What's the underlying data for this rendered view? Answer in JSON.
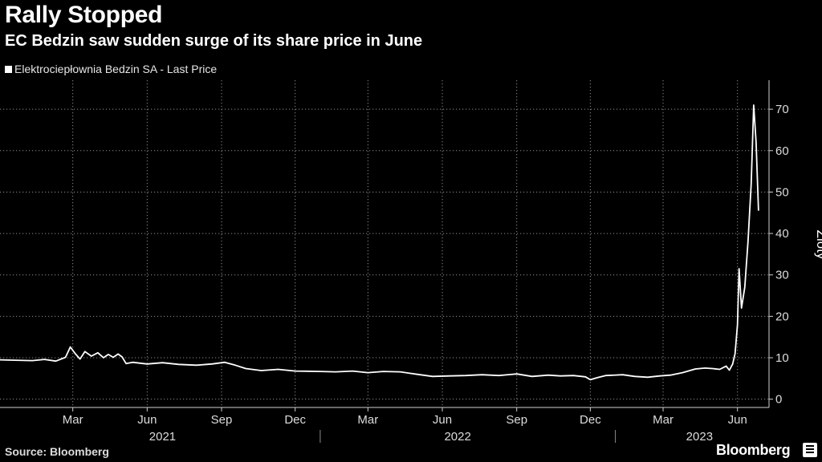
{
  "header": {
    "title": "Rally Stopped",
    "subtitle": "EC Bedzin saw sudden surge of its share price in June"
  },
  "footer": {
    "source": "Source: Bloomberg",
    "brand": "Bloomberg"
  },
  "colors": {
    "background": "#000000",
    "line": "#ffffff",
    "grid": "#8c8c8c"
  },
  "chart_data": {
    "type": "line",
    "title": "Rally Stopped",
    "subtitle": "EC Bedzin saw sudden surge of its share price in June",
    "series": [
      {
        "name": "Elektrociepłownia Bedzin SA - Last Price",
        "points": [
          [
            "2020-12-01",
            9.5
          ],
          [
            "2020-12-20",
            9.4
          ],
          [
            "2021-01-10",
            9.3
          ],
          [
            "2021-01-25",
            9.6
          ],
          [
            "2021-02-08",
            9.2
          ],
          [
            "2021-02-20",
            10.1
          ],
          [
            "2021-02-26",
            12.6
          ],
          [
            "2021-03-04",
            11.0
          ],
          [
            "2021-03-10",
            9.7
          ],
          [
            "2021-03-16",
            11.5
          ],
          [
            "2021-03-24",
            10.4
          ],
          [
            "2021-04-01",
            11.2
          ],
          [
            "2021-04-08",
            10.0
          ],
          [
            "2021-04-14",
            10.8
          ],
          [
            "2021-04-20",
            10.1
          ],
          [
            "2021-04-26",
            10.9
          ],
          [
            "2021-05-01",
            10.2
          ],
          [
            "2021-05-06",
            8.6
          ],
          [
            "2021-05-14",
            8.9
          ],
          [
            "2021-06-01",
            8.5
          ],
          [
            "2021-06-20",
            8.8
          ],
          [
            "2021-07-10",
            8.4
          ],
          [
            "2021-08-01",
            8.2
          ],
          [
            "2021-08-20",
            8.5
          ],
          [
            "2021-09-05",
            8.9
          ],
          [
            "2021-09-18",
            8.2
          ],
          [
            "2021-10-01",
            7.4
          ],
          [
            "2021-10-20",
            6.9
          ],
          [
            "2021-11-10",
            7.2
          ],
          [
            "2021-12-01",
            6.8
          ],
          [
            "2022-01-01",
            6.7
          ],
          [
            "2022-01-20",
            6.6
          ],
          [
            "2022-02-10",
            6.8
          ],
          [
            "2022-03-01",
            6.4
          ],
          [
            "2022-03-20",
            6.7
          ],
          [
            "2022-04-10",
            6.6
          ],
          [
            "2022-05-01",
            6.0
          ],
          [
            "2022-05-20",
            5.5
          ],
          [
            "2022-06-10",
            5.6
          ],
          [
            "2022-06-30",
            5.7
          ],
          [
            "2022-07-20",
            5.9
          ],
          [
            "2022-08-10",
            5.7
          ],
          [
            "2022-09-01",
            6.1
          ],
          [
            "2022-09-20",
            5.5
          ],
          [
            "2022-10-10",
            5.8
          ],
          [
            "2022-10-25",
            5.6
          ],
          [
            "2022-11-10",
            5.7
          ],
          [
            "2022-11-25",
            5.4
          ],
          [
            "2022-12-01",
            4.7
          ],
          [
            "2022-12-10",
            5.2
          ],
          [
            "2022-12-20",
            5.7
          ],
          [
            "2023-01-10",
            5.9
          ],
          [
            "2023-01-25",
            5.5
          ],
          [
            "2023-02-10",
            5.3
          ],
          [
            "2023-02-25",
            5.6
          ],
          [
            "2023-03-10",
            5.8
          ],
          [
            "2023-03-25",
            6.4
          ],
          [
            "2023-04-10",
            7.3
          ],
          [
            "2023-04-22",
            7.5
          ],
          [
            "2023-05-01",
            7.4
          ],
          [
            "2023-05-10",
            7.2
          ],
          [
            "2023-05-18",
            8.0
          ],
          [
            "2023-05-22",
            7.0
          ],
          [
            "2023-05-26",
            8.5
          ],
          [
            "2023-05-29",
            11.0
          ],
          [
            "2023-06-01",
            18.0
          ],
          [
            "2023-06-03",
            31.5
          ],
          [
            "2023-06-06",
            22.0
          ],
          [
            "2023-06-10",
            27.0
          ],
          [
            "2023-06-14",
            38.0
          ],
          [
            "2023-06-18",
            52.0
          ],
          [
            "2023-06-21",
            71.0
          ],
          [
            "2023-06-24",
            62.0
          ],
          [
            "2023-06-27",
            45.5
          ]
        ]
      }
    ],
    "xlim": [
      "2020-12-01",
      "2023-07-10"
    ],
    "ylim": [
      -2,
      77
    ],
    "yticks": [
      0,
      10,
      20,
      30,
      40,
      50,
      60,
      70
    ],
    "ylabel": "Zloty",
    "xtick_dates": [
      [
        "2021-03-01",
        "Mar"
      ],
      [
        "2021-06-01",
        "Jun"
      ],
      [
        "2021-09-01",
        "Sep"
      ],
      [
        "2021-12-01",
        "Dec"
      ],
      [
        "2022-03-01",
        "Mar"
      ],
      [
        "2022-06-01",
        "Jun"
      ],
      [
        "2022-09-01",
        "Sep"
      ],
      [
        "2022-12-01",
        "Dec"
      ],
      [
        "2023-03-01",
        "Mar"
      ],
      [
        "2023-06-01",
        "Jun"
      ]
    ],
    "year_labels": [
      [
        "2021-06-20",
        "2021"
      ],
      [
        "2022-06-20",
        "2022"
      ],
      [
        "2023-04-15",
        "2023"
      ]
    ],
    "year_separators": [
      "2022-01-01",
      "2023-01-01"
    ],
    "gridlines": "dotted",
    "legend_position": "top-left"
  }
}
